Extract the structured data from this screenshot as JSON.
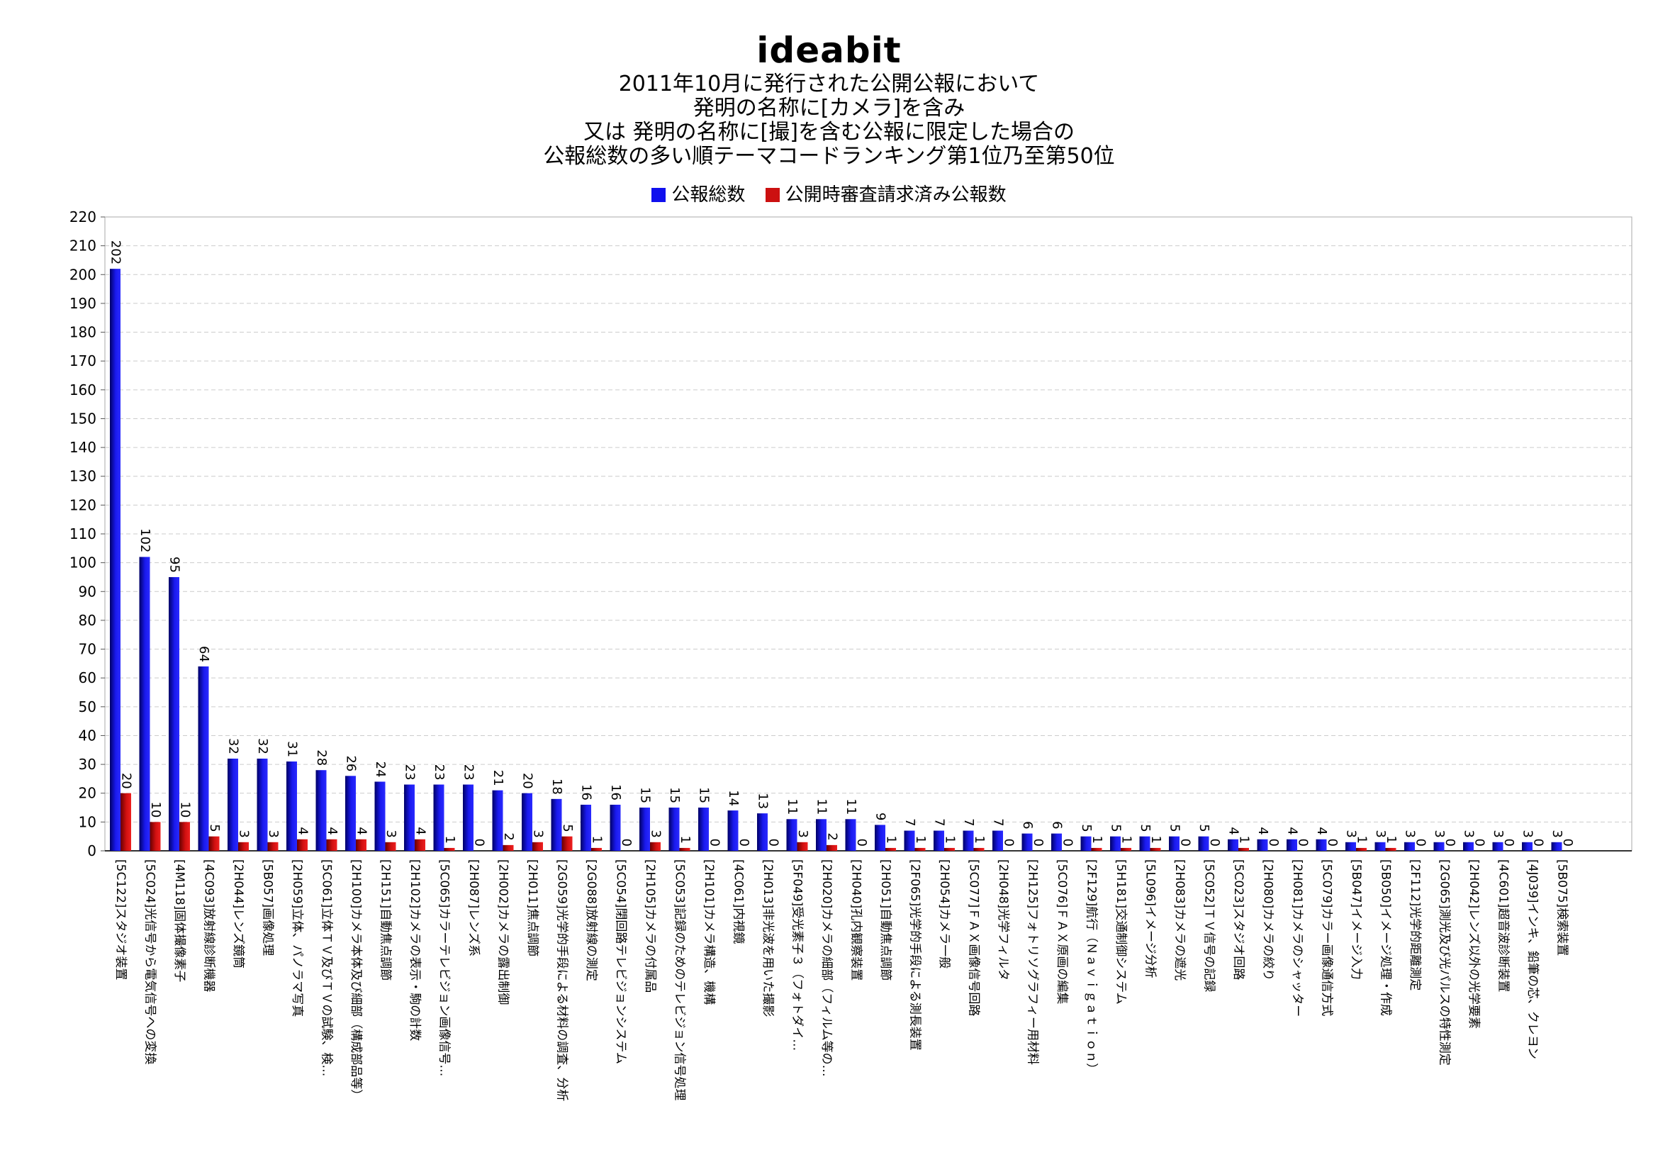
{
  "brand": "ideabit",
  "title_lines": [
    "2011年10月に発行された公開公報において",
    "発明の名称に[カメラ]を含み",
    "又は 発明の名称に[撮]を含む公報に限定した場合の",
    "公報総数の多い順テーマコードランキング第1位乃至第50位"
  ],
  "colors": {
    "total": "#1010ee",
    "examined": "#cc1010",
    "grid": "#cccccc"
  },
  "chart_data": {
    "type": "bar",
    "ylim": [
      0,
      220
    ],
    "yticks": [
      0,
      10,
      20,
      30,
      40,
      50,
      60,
      70,
      80,
      90,
      100,
      110,
      120,
      130,
      140,
      150,
      160,
      170,
      180,
      190,
      200,
      210,
      220
    ],
    "grid": true,
    "legend_position": "top",
    "categories": [
      "[5C122]スタジオ装置",
      "[5C024]光信号から電気信号への変換",
      "[4M118]固体撮像素子",
      "[4C093]放射線診断機器",
      "[2H044]レンズ鏡筒",
      "[5B057]画像処理",
      "[2H059]立体、パノラマ写真",
      "[5C061]立体ＴＶ及びＴＶの試験、検…",
      "[2H100]カメラ本体及び細部（構成部品等）",
      "[2H151]自動焦点調節",
      "[2H102]カメラの表示・駒の計数",
      "[5C065]カラーテレビジョン画像信号…",
      "[2H087]レンズ系",
      "[2H002]カメラの露出制御",
      "[2H011]焦点調節",
      "[2G059]光学的手段による材料の調査、分析",
      "[2G088]放射線の測定",
      "[5C054]閉回路テレビジョンシステム",
      "[2H105]カメラの付属品",
      "[5C053]記録のためのテレビジョン信号処理",
      "[2H101]カメラ構造、機構",
      "[4C061]内視鏡",
      "[2H013]非光波を用いた撮影",
      "[5F049]受光素子３（フォトダイ…",
      "[2H020]カメラの細部（フィルム等の…",
      "[2H040]孔内観察装置",
      "[2H051]自動焦点調節",
      "[2F065]光学的手段による測長装置",
      "[2H054]カメラ一般",
      "[5C077]ＦＡＸ画像信号回路",
      "[2H048]光学フィルタ",
      "[2H125]フォトリソグラフィー用材料",
      "[5C076]ＦＡＸ原画の編集",
      "[2F129]航行（Ｎａｖｉｇａｔｉｏｎ）",
      "[5H181]交通制御システム",
      "[5L096]イメージ分析",
      "[2H083]カメラの遮光",
      "[5C052]ＴＶ信号の記録",
      "[5C023]スタジオ回路",
      "[2H080]カメラの絞り",
      "[2H081]カメラのシャッター",
      "[5C079]カラー画像通信方式",
      "[5B047]イメージ入力",
      "[5B050]イメージ処理・作成",
      "[2F112]光学的距離測定",
      "[2G065]測光及び光パルスの特性測定",
      "[2H042]レンズ以外の光学要素",
      "[4C601]超音波診断装置",
      "[4J039]インキ、鉛筆の芯、クレヨン",
      "[5B075]検索装置"
    ],
    "series": [
      {
        "name": "公報総数",
        "values": [
          202,
          102,
          95,
          64,
          32,
          32,
          31,
          28,
          26,
          24,
          23,
          23,
          23,
          21,
          20,
          18,
          16,
          16,
          15,
          15,
          15,
          14,
          13,
          11,
          11,
          11,
          9,
          7,
          7,
          7,
          7,
          6,
          6,
          5,
          5,
          5,
          5,
          5,
          4,
          4,
          4,
          4,
          3,
          3,
          3,
          3,
          3,
          3,
          3,
          3
        ]
      },
      {
        "name": "公開時審査請求済み公報数",
        "values": [
          20,
          10,
          10,
          5,
          3,
          3,
          4,
          4,
          4,
          3,
          4,
          1,
          0,
          2,
          3,
          5,
          1,
          0,
          3,
          1,
          0,
          0,
          0,
          3,
          2,
          0,
          1,
          1,
          1,
          1,
          0,
          0,
          0,
          1,
          1,
          1,
          0,
          0,
          1,
          0,
          0,
          0,
          1,
          1,
          0,
          0,
          0,
          0,
          0,
          0
        ]
      }
    ]
  }
}
